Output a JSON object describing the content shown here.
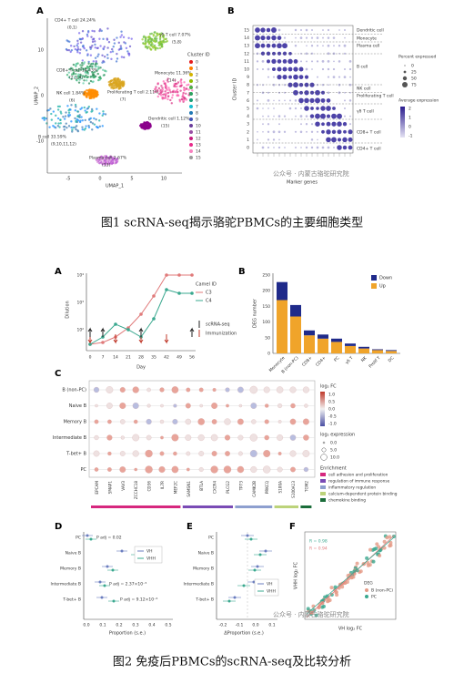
{
  "figure1": {
    "caption": "图1 scRNA-seq揭示骆驼PBMCs的主要细胞类型",
    "watermark": "公众号 · 内蒙古骆驼研究院",
    "panel_a": {
      "letter": "A",
      "x_label": "UMAP_1",
      "y_label": "UMAP_2",
      "x_ticks": [
        "-5",
        "0",
        "5",
        "10"
      ],
      "y_ticks": [
        "10",
        "0",
        "-10"
      ],
      "legend_title": "Cluster ID",
      "legend_items": [
        "0",
        "1",
        "2",
        "3",
        "4",
        "5",
        "6",
        "7",
        "8",
        "9",
        "10",
        "11",
        "12",
        "13",
        "14",
        "15"
      ],
      "clusters": [
        {
          "name": "CD4+ T cell 24.24%",
          "ids": "(0,1)"
        },
        {
          "name": "γδ T cell 7.07%",
          "ids": "(5,8)"
        },
        {
          "name": "CD8+ T cell 14.43%",
          "ids": "(2,3,4)"
        },
        {
          "name": "NK cell 1.84%",
          "ids": "(6)"
        },
        {
          "name": "Proliferating T cell 2.11%",
          "ids": "(7)"
        },
        {
          "name": "Monocyte 11.36%",
          "ids": "(14)"
        },
        {
          "name": "B cell 33.59%",
          "ids": "(9,10,11,12)"
        },
        {
          "name": "Dendritic cell 1.12%",
          "ids": "(15)"
        },
        {
          "name": "Plasma cell 2.67%",
          "ids": "(13)"
        }
      ]
    },
    "panel_b": {
      "letter": "B",
      "y_label": "Cluster ID",
      "x_label": "Marker genes",
      "y_ticks": [
        "15",
        "14",
        "13",
        "12",
        "11",
        "10",
        "9",
        "8",
        "7",
        "6",
        "5",
        "4",
        "3",
        "2",
        "1",
        "0"
      ],
      "cell_types": [
        "Dendritic cell",
        "Monocyte",
        "Plasma cell",
        "B cell",
        "NK cell",
        "Proliferating T cell",
        "γδ T cell",
        "CD8+ T cell",
        "CD4+ T cell"
      ],
      "size_legend_title": "Percent expressed",
      "size_legend_items": [
        "0",
        "25",
        "50",
        "75"
      ],
      "color_legend_title": "Average expression",
      "color_legend_items": [
        "2",
        "1",
        "0",
        "-1"
      ]
    }
  },
  "figure2": {
    "caption": "图2 免疫后PBMCs的scRNA-seq及比较分析",
    "watermark": "公众号 · 内蒙古骆驼研究院",
    "panel_a": {
      "letter": "A",
      "y_label": "Dilution",
      "x_label": "Day",
      "y_ticks": [
        "10⁴",
        "10³",
        "10²"
      ],
      "x_ticks": [
        "0",
        "7",
        "14",
        "21",
        "28",
        "35",
        "42",
        "49",
        "56"
      ],
      "legend_title": "Camel ID",
      "legend_items": [
        "C3",
        "C4"
      ],
      "marker_items": [
        "scRNA-seq",
        "Immunization"
      ]
    },
    "panel_b": {
      "letter": "B",
      "y_label": "DEG number",
      "y_ticks": [
        "250",
        "200",
        "150",
        "100",
        "50",
        "0"
      ],
      "categories": [
        "Monocyte",
        "B (non-PC)",
        "CD8+",
        "CD4+",
        "PC",
        "γδ T",
        "NK",
        "Prolif T",
        "DC"
      ],
      "legend_items": [
        "Down",
        "Up"
      ]
    },
    "panel_c": {
      "letter": "C",
      "rows": [
        "B (non-PC)",
        "Naive B",
        "Memory B",
        "Intermediate B",
        "T-bet+ B",
        "PC"
      ],
      "genes": [
        "EPCAM",
        "SMAP1",
        "VAV3",
        "ZCCHC18",
        "CD36",
        "IL7R",
        "MEF2C",
        "SAMSN1",
        "BTLA",
        "CXCR4",
        "PLCG2",
        "TP73",
        "CAMK2B",
        "PRKCQ",
        "S100A",
        "S100A13",
        "TGM2"
      ],
      "fc_title": "log₂ FC",
      "fc_items": [
        "1.0",
        "0.5",
        "0.0",
        "-0.5",
        "-1.0"
      ],
      "expr_title": "log₂ expression",
      "expr_items": [
        "0.0",
        "5.0",
        "10.0"
      ],
      "enrichment_title": "Enrichment",
      "enrichment_items": [
        "cell adhesion and proliferation",
        "regulation of immune response",
        "inflammatory regulation",
        "calcium-dependent protein binding",
        "chemokine binding"
      ]
    },
    "panel_d": {
      "letter": "D",
      "x_label": "Proportion (s.e.)",
      "rows": [
        "PC",
        "Naive B",
        "Memory B",
        "Intermediate B",
        "T-bet+ B"
      ],
      "x_ticks": [
        "0.0",
        "0.1",
        "0.2",
        "0.3",
        "0.4",
        "0.5"
      ],
      "annotations": [
        "P adj = 0.02",
        "P adj = 2.37×10⁻⁵",
        "P adj = 9.12×10⁻⁶"
      ],
      "legend_items": [
        "VH",
        "VHH"
      ]
    },
    "panel_e": {
      "letter": "E",
      "x_label": "ΔProportion (s.e.)",
      "rows": [
        "PC",
        "Naive B",
        "Memory B",
        "Intermediate B",
        "T-bet+ B"
      ],
      "x_ticks": [
        "-0.2",
        "-0.1",
        "0.0",
        "0.1"
      ],
      "legend_items": [
        "VH",
        "VHH"
      ]
    },
    "panel_f": {
      "letter": "F",
      "x_label": "VH log₂ FC",
      "y_label": "VHH log₂ FC",
      "stats": [
        "R = 0.98",
        "R = 0.94"
      ],
      "legend_title": "DEG",
      "legend_items": [
        "B (non-PC)",
        "PC"
      ]
    }
  }
}
